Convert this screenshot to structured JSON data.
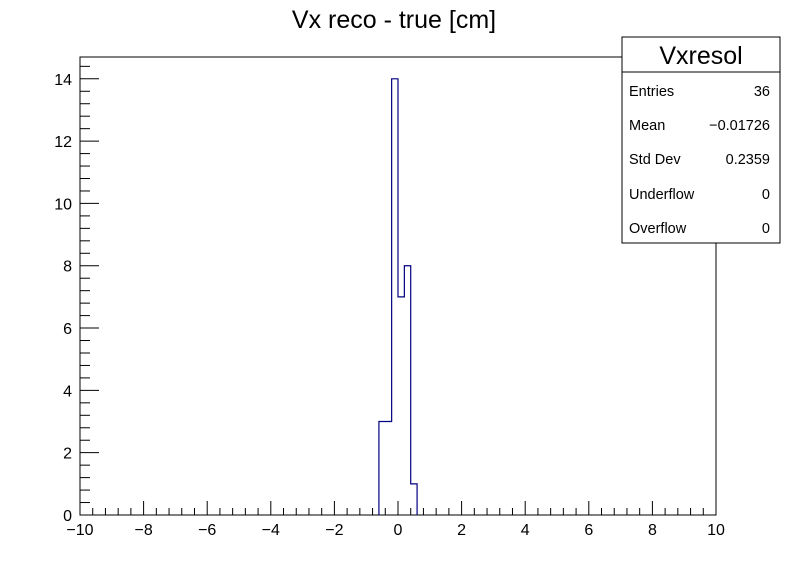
{
  "chart_data": {
    "type": "histogram",
    "title": "Vx reco - true [cm]",
    "xlim": [
      -10,
      10
    ],
    "ylim": [
      0,
      14.7
    ],
    "bin_edges": [
      -10,
      -9.8,
      -9.6,
      -9.4,
      -9.2,
      -9.0,
      -8.8,
      -8.6,
      -8.4,
      -8.2,
      -8.0,
      -7.8,
      -7.6,
      -7.4,
      -7.2,
      -7.0,
      -6.8,
      -6.6,
      -6.4,
      -6.2,
      -6.0,
      -5.8,
      -5.6,
      -5.4,
      -5.2,
      -5.0,
      -4.8,
      -4.6,
      -4.4,
      -4.2,
      -4.0,
      -3.8,
      -3.6,
      -3.4,
      -3.2,
      -3.0,
      -2.8,
      -2.6,
      -2.4,
      -2.2,
      -2.0,
      -1.8,
      -1.6,
      -1.4,
      -1.2,
      -1.0,
      -0.8,
      -0.6,
      -0.4,
      -0.2,
      0.0,
      0.2,
      0.4,
      0.6,
      0.8,
      1.0,
      1.2,
      1.4,
      1.6,
      1.8,
      2.0,
      2.2,
      2.4,
      2.6,
      2.8,
      3.0,
      3.2,
      3.4,
      3.6,
      3.8,
      4.0,
      4.2,
      4.4,
      4.6,
      4.8,
      5.0,
      5.2,
      5.4,
      5.6,
      5.8,
      6.0,
      6.2,
      6.4,
      6.6,
      6.8,
      7.0,
      7.2,
      7.4,
      7.6,
      7.8,
      8.0,
      8.2,
      8.4,
      8.6,
      8.8,
      9.0,
      9.2,
      9.4,
      9.6,
      9.8,
      10.0
    ],
    "nonzero_bins": [
      {
        "x_low": -0.6,
        "x_high": -0.2,
        "count": 3
      },
      {
        "x_low": -0.2,
        "x_high": 0.0,
        "count": 14
      },
      {
        "x_low": 0.0,
        "x_high": 0.2,
        "count": 7
      },
      {
        "x_low": 0.2,
        "x_high": 0.4,
        "count": 8
      },
      {
        "x_low": 0.4,
        "x_high": 0.6,
        "count": 1
      }
    ],
    "x_ticks": [
      -10,
      -8,
      -6,
      -4,
      -2,
      0,
      2,
      4,
      6,
      8,
      10
    ],
    "x_tick_labels": [
      "−10",
      "−8",
      "−6",
      "−4",
      "−2",
      "0",
      "2",
      "4",
      "6",
      "8",
      "10"
    ],
    "y_ticks": [
      0,
      2,
      4,
      6,
      8,
      10,
      12,
      14
    ],
    "y_tick_labels": [
      "0",
      "2",
      "4",
      "6",
      "8",
      "10",
      "12",
      "14"
    ],
    "line_color": "#000080",
    "legend_position": "top-right"
  },
  "stats_box": {
    "name": "Vxresol",
    "rows": [
      {
        "label": "Entries",
        "value": "36"
      },
      {
        "label": "Mean",
        "value": "−0.01726"
      },
      {
        "label": "Std Dev",
        "value": "0.2359"
      },
      {
        "label": "Underflow",
        "value": "0"
      },
      {
        "label": "Overflow",
        "value": "0"
      }
    ]
  }
}
